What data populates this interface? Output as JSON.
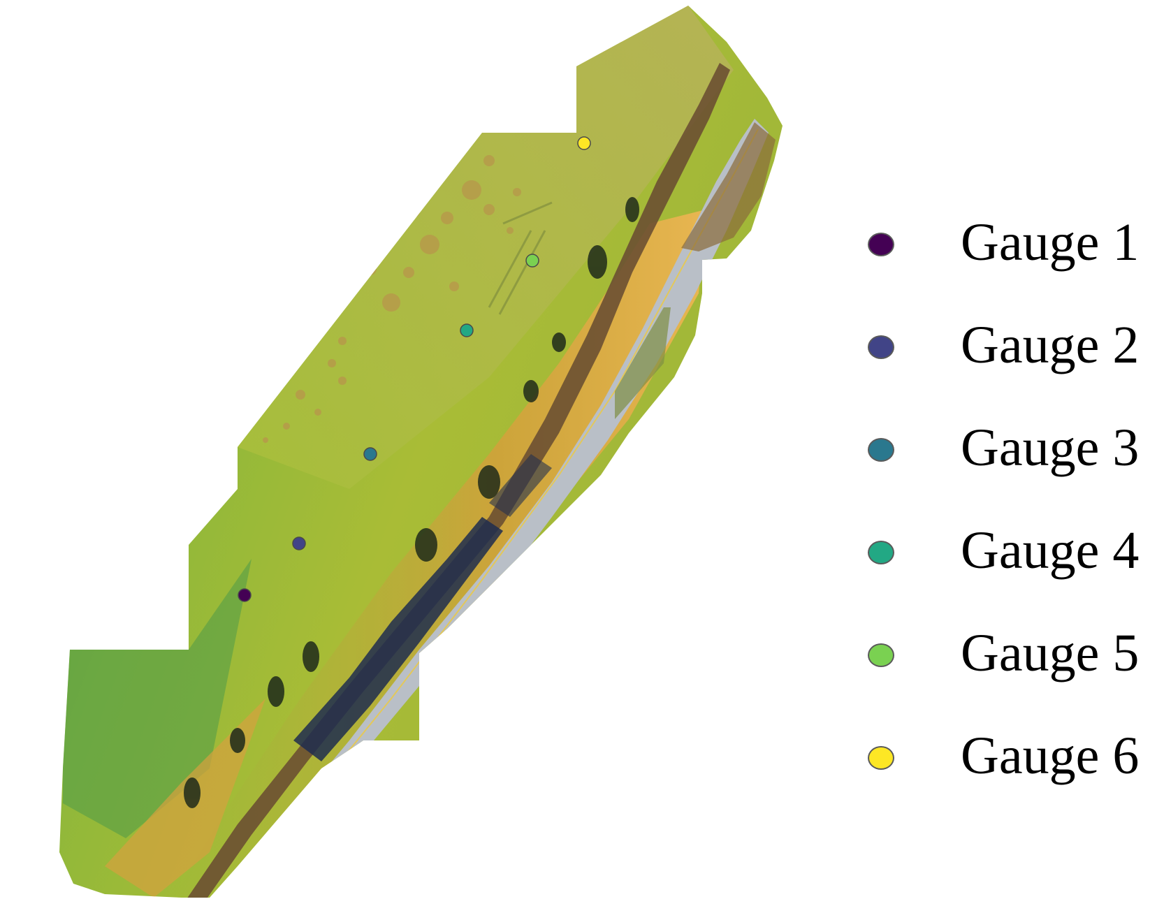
{
  "map": {
    "type": "aerial-orthomosaic",
    "overlay": "gauge-locations"
  },
  "gauges": [
    {
      "label": "Gauge 1",
      "color": "#440154"
    },
    {
      "label": "Gauge 2",
      "color": "#414487"
    },
    {
      "label": "Gauge 3",
      "color": "#2a788e"
    },
    {
      "label": "Gauge 4",
      "color": "#22a884"
    },
    {
      "label": "Gauge 5",
      "color": "#7ad151"
    },
    {
      "label": "Gauge 6",
      "color": "#fde725"
    }
  ],
  "legend": {
    "items": [
      "Gauge 1",
      "Gauge 2",
      "Gauge 3",
      "Gauge 4",
      "Gauge 5",
      "Gauge 6"
    ]
  }
}
